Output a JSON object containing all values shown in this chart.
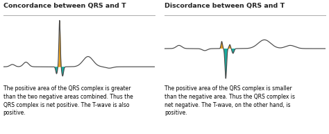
{
  "title_left": "Concordance between QRS and T",
  "title_right": "Discordance between QRS and T",
  "text_left": "The positive area of the QRS complex is greater\nthan the two negative areas combined. Thus the\nQRS complex is net positive. The T-wave is also\npositive.",
  "text_right": "The positive area of the QRS complex is smaller\nthan the negative area. Thus the QRS complex is\nnet negative. The T-wave, on the other hand, is\npositive.",
  "color_positive": "#E8A020",
  "color_negative": "#1AADA0",
  "color_line": "#4A4A4A",
  "title_fontsize": 6.8,
  "text_fontsize": 5.5,
  "bg_color": "#FFFFFF",
  "title_color": "#222222",
  "divider_color": "#AAAAAA"
}
